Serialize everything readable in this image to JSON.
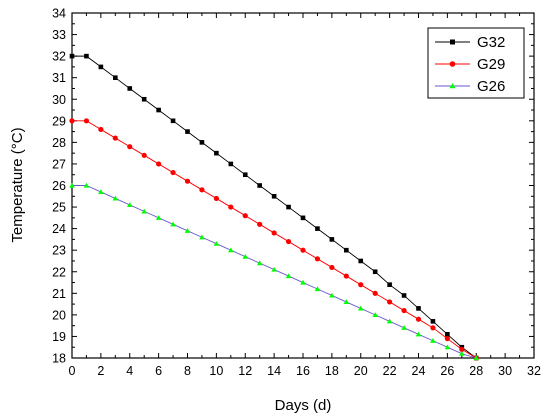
{
  "chart_data": {
    "type": "line",
    "title": "",
    "xlabel": "Days (d)",
    "ylabel": "Temperature (°C)",
    "xlim": [
      0,
      32
    ],
    "ylim": [
      18,
      34
    ],
    "x_ticks": [
      "0",
      "2",
      "4",
      "6",
      "8",
      "10",
      "12",
      "14",
      "16",
      "18",
      "20",
      "22",
      "24",
      "26",
      "28",
      "30",
      "32"
    ],
    "y_ticks": [
      "18",
      "19",
      "20",
      "21",
      "22",
      "23",
      "24",
      "25",
      "26",
      "27",
      "28",
      "29",
      "30",
      "31",
      "32",
      "33",
      "34"
    ],
    "grid": false,
    "legend_position": "top-right",
    "series": [
      {
        "name": "G32",
        "color": "#000000",
        "marker": "square",
        "x": [
          0,
          1,
          2,
          3,
          4,
          5,
          6,
          7,
          8,
          9,
          10,
          11,
          12,
          13,
          14,
          15,
          16,
          17,
          18,
          19,
          20,
          21,
          22,
          23,
          24,
          25,
          26,
          27,
          28
        ],
        "y": [
          32,
          32,
          31.5,
          31,
          30.5,
          30,
          29.5,
          29,
          28.5,
          28,
          27.5,
          27,
          26.5,
          26,
          25.5,
          25,
          24.5,
          24,
          23.5,
          23,
          22.5,
          22,
          21.4,
          20.9,
          20.3,
          19.7,
          19.1,
          18.5,
          18
        ]
      },
      {
        "name": "G29",
        "color": "#ff0000",
        "marker": "circle",
        "x": [
          0,
          1,
          2,
          3,
          4,
          5,
          6,
          7,
          8,
          9,
          10,
          11,
          12,
          13,
          14,
          15,
          16,
          17,
          18,
          19,
          20,
          21,
          22,
          23,
          24,
          25,
          26,
          27,
          28
        ],
        "y": [
          29,
          29,
          28.6,
          28.2,
          27.8,
          27.4,
          27,
          26.6,
          26.2,
          25.8,
          25.4,
          25,
          24.6,
          24.2,
          23.8,
          23.4,
          23,
          22.6,
          22.2,
          21.8,
          21.4,
          21,
          20.6,
          20.2,
          19.8,
          19.4,
          18.9,
          18.4,
          18
        ]
      },
      {
        "name": "G26",
        "color": "#00ff00",
        "line_color": "#6a5acd",
        "marker": "triangle",
        "x": [
          0,
          1,
          2,
          3,
          4,
          5,
          6,
          7,
          8,
          9,
          10,
          11,
          12,
          13,
          14,
          15,
          16,
          17,
          18,
          19,
          20,
          21,
          22,
          23,
          24,
          25,
          26,
          27,
          28
        ],
        "y": [
          26,
          26,
          25.7,
          25.4,
          25.1,
          24.8,
          24.5,
          24.2,
          23.9,
          23.6,
          23.3,
          23,
          22.7,
          22.4,
          22.1,
          21.8,
          21.5,
          21.2,
          20.9,
          20.6,
          20.3,
          20,
          19.7,
          19.4,
          19.1,
          18.8,
          18.5,
          18.2,
          18
        ]
      }
    ]
  }
}
